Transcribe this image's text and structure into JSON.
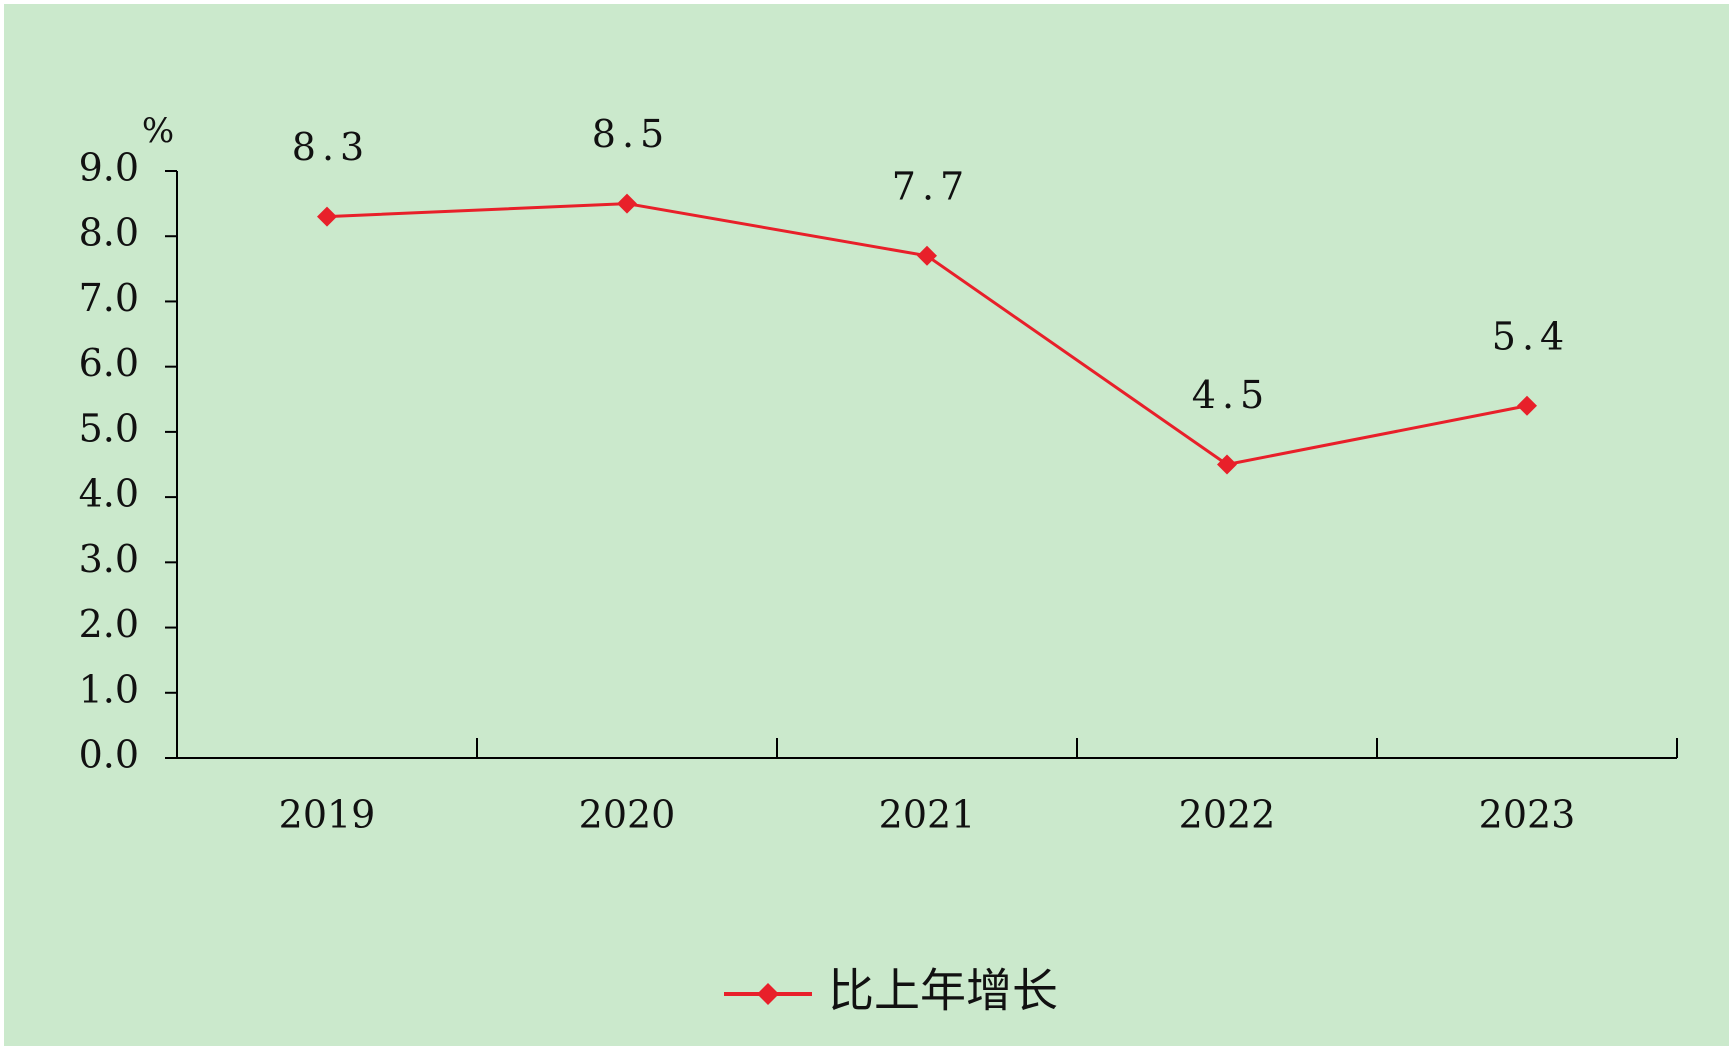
{
  "chart_data": {
    "type": "line",
    "y_unit": "%",
    "categories": [
      "2019",
      "2020",
      "2021",
      "2022",
      "2023"
    ],
    "series": [
      {
        "name": "比上年增长",
        "color": "#e8202a",
        "values": [
          8.3,
          8.5,
          7.7,
          4.5,
          5.4
        ]
      }
    ],
    "ylim": [
      0,
      9
    ],
    "yticks": [
      {
        "value": 0,
        "label": "0.0"
      },
      {
        "value": 1,
        "label": "1.0"
      },
      {
        "value": 2,
        "label": "2.0"
      },
      {
        "value": 3,
        "label": "3.0"
      },
      {
        "value": 4,
        "label": "4.0"
      },
      {
        "value": 5,
        "label": "5.0"
      },
      {
        "value": 6,
        "label": "6.0"
      },
      {
        "value": 7,
        "label": "7.0"
      },
      {
        "value": 8,
        "label": "8.0"
      },
      {
        "value": 9,
        "label": "9.0"
      }
    ],
    "grid": false,
    "legend": "bottom"
  }
}
